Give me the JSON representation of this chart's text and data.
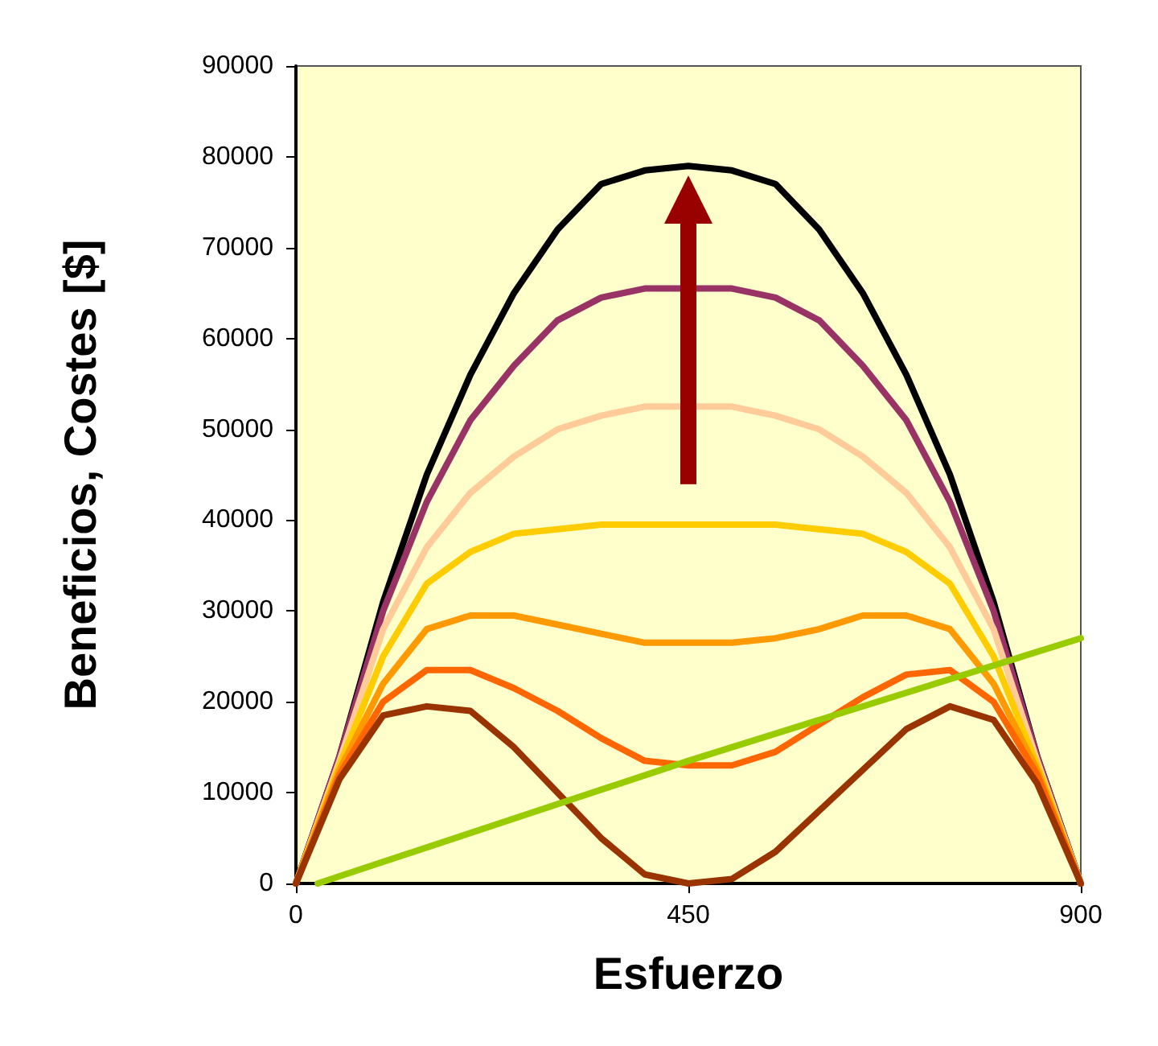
{
  "chart_data": {
    "type": "line",
    "xlabel": "Esfuerzo",
    "ylabel": "Beneficios, Costes [$]",
    "x": [
      0,
      50,
      100,
      150,
      200,
      250,
      300,
      350,
      400,
      450,
      500,
      550,
      600,
      650,
      700,
      750,
      800,
      850,
      900
    ],
    "xlim": [
      0,
      900
    ],
    "xticks": [
      0,
      450,
      900
    ],
    "ylim": [
      0,
      90000
    ],
    "yticks": [
      0,
      10000,
      20000,
      30000,
      40000,
      50000,
      60000,
      70000,
      80000,
      90000
    ],
    "grid": false,
    "marker": "none",
    "line_style": "solid",
    "series": [
      {
        "color": "#000000",
        "values": [
          0,
          14000,
          31000,
          45000,
          56000,
          65000,
          72000,
          77000,
          78500,
          79000,
          78500,
          77000,
          72000,
          65000,
          56000,
          45000,
          31000,
          14000,
          0
        ]
      },
      {
        "color": "#993366",
        "values": [
          0,
          14000,
          30000,
          42000,
          51000,
          57000,
          62000,
          64500,
          65500,
          null,
          65500,
          64500,
          62000,
          57000,
          51000,
          42000,
          30000,
          14000,
          0
        ]
      },
      {
        "color": "#ffcc99",
        "values": [
          0,
          13500,
          28000,
          37000,
          43000,
          47000,
          50000,
          51500,
          52500,
          null,
          52500,
          51500,
          50000,
          47000,
          43000,
          37000,
          28000,
          13500,
          0
        ]
      },
      {
        "color": "#ffcc00",
        "values": [
          0,
          13000,
          25000,
          33000,
          36500,
          38500,
          39000,
          39500,
          39500,
          39500,
          39500,
          39500,
          39000,
          38500,
          36500,
          33000,
          25000,
          13000,
          0
        ]
      },
      {
        "color": "#ff9900",
        "values": [
          0,
          12500,
          22000,
          28000,
          29500,
          29500,
          28500,
          27500,
          26500,
          26500,
          26500,
          27000,
          28000,
          29500,
          29500,
          28000,
          22000,
          12500,
          0
        ]
      },
      {
        "color": "#ff6600",
        "values": [
          0,
          12000,
          20000,
          23500,
          23500,
          21500,
          19000,
          16000,
          13500,
          13000,
          13000,
          14500,
          17500,
          20500,
          23000,
          23500,
          20000,
          12000,
          0
        ]
      },
      {
        "color": "#993300",
        "values": [
          0,
          11500,
          18500,
          19500,
          19000,
          15000,
          10000,
          5000,
          1000,
          0,
          500,
          3500,
          8000,
          12500,
          17000,
          19500,
          18000,
          11000,
          0
        ]
      },
      {
        "color": "#99cc00",
        "x": [
          25,
          450,
          900
        ],
        "values": [
          0,
          13500,
          27000
        ]
      }
    ]
  }
}
